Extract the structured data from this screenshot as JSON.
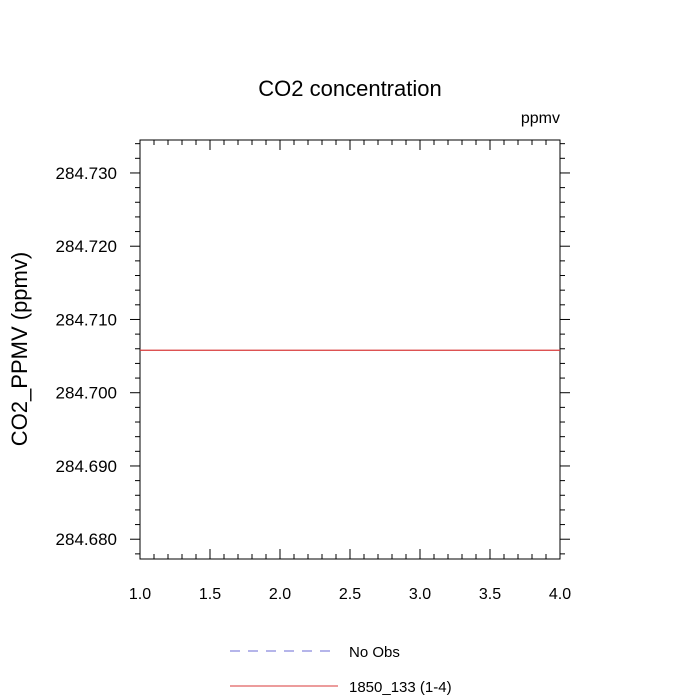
{
  "chart_data": {
    "type": "line",
    "title": "CO2 concentration",
    "units_label": "ppmv",
    "ylabel": "CO2_PPMV  (ppmv)",
    "xlabel": "",
    "xlim": [
      1.0,
      4.0
    ],
    "ylim": [
      284.6773,
      284.7345
    ],
    "x_ticks": [
      1.0,
      1.5,
      2.0,
      2.5,
      3.0,
      3.5,
      4.0
    ],
    "x_tick_labels": [
      "1.0",
      "1.5",
      "2.0",
      "2.5",
      "3.0",
      "3.5",
      "4.0"
    ],
    "y_ticks": [
      284.68,
      284.69,
      284.7,
      284.71,
      284.72,
      284.73
    ],
    "y_tick_labels": [
      "284.680",
      "284.690",
      "284.700",
      "284.710",
      "284.720",
      "284.730"
    ],
    "grid": false,
    "legend_position": "bottom",
    "series": [
      {
        "name": "No Obs",
        "color": "#6b6bd6",
        "dash": "dashed",
        "x": [],
        "y": []
      },
      {
        "name": "1850_133 (1-4)",
        "color": "#d83a3a",
        "dash": "solid",
        "x": [
          1.0,
          2.0,
          3.0,
          4.0
        ],
        "y": [
          284.7058,
          284.7058,
          284.7058,
          284.7058
        ]
      }
    ]
  }
}
